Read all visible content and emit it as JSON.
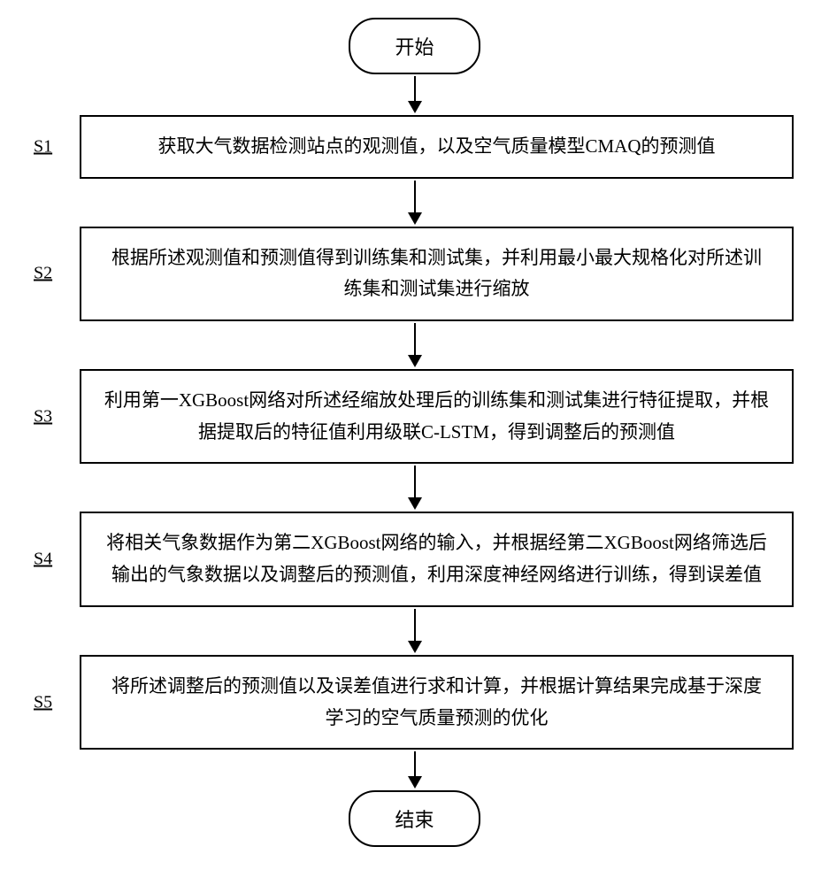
{
  "flowchart": {
    "type": "flowchart",
    "background_color": "#ffffff",
    "border_color": "#000000",
    "border_width": 2,
    "font_family": "SimSun",
    "terminator_fontsize": 22,
    "process_fontsize": 21,
    "label_fontsize": 20,
    "arrow_color": "#000000",
    "start": {
      "label": "开始"
    },
    "end": {
      "label": "结束"
    },
    "steps": [
      {
        "id": "S1",
        "text": "获取大气数据检测站点的观测值，以及空气质量模型CMAQ的预测值"
      },
      {
        "id": "S2",
        "text": "根据所述观测值和预测值得到训练集和测试集，并利用最小最大规格化对所述训练集和测试集进行缩放"
      },
      {
        "id": "S3",
        "text": "利用第一XGBoost网络对所述经缩放处理后的训练集和测试集进行特征提取，并根据提取后的特征值利用级联C-LSTM，得到调整后的预测值"
      },
      {
        "id": "S4",
        "text": "将相关气象数据作为第二XGBoost网络的输入，并根据经第二XGBoost网络筛选后输出的气象数据以及调整后的预测值，利用深度神经网络进行训练，得到误差值"
      },
      {
        "id": "S5",
        "text": "将所述调整后的预测值以及误差值进行求和计算，并根据计算结果完成基于深度学习的空气质量预测的优化"
      }
    ]
  }
}
